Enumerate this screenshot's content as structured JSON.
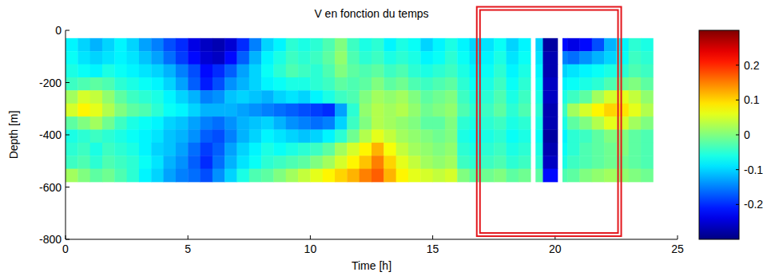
{
  "chart_data": {
    "type": "heatmap",
    "title": "V en fonction du temps",
    "x_label": "Time [h]",
    "y_label": "Depth [m]",
    "xlim": [
      0,
      25
    ],
    "ylim": [
      -800,
      0
    ],
    "xticks": [
      0,
      5,
      10,
      15,
      20,
      25
    ],
    "yticks": [
      -800,
      -600,
      -400,
      -200,
      0
    ],
    "x_edges": [
      0,
      0.5,
      1,
      1.5,
      2,
      2.5,
      3,
      3.5,
      4,
      4.5,
      5,
      5.5,
      6,
      6.5,
      7,
      7.5,
      8,
      8.5,
      9,
      9.5,
      10,
      10.5,
      11,
      11.5,
      12,
      12.5,
      13,
      13.5,
      14,
      14.5,
      15,
      15.5,
      16,
      16.5,
      17,
      17.5,
      18,
      18.5,
      19,
      19.2,
      19.5,
      20.1,
      20.3,
      20.5,
      21,
      21.5,
      22,
      22.5,
      23,
      23.5,
      24
    ],
    "y_edges": [
      -30,
      -80,
      -130,
      -180,
      -230,
      -280,
      -330,
      -380,
      -430,
      -480,
      -530,
      -580
    ],
    "cells": [
      [
        -0.08,
        -0.1,
        -0.12,
        -0.1,
        -0.08,
        -0.1,
        -0.13,
        -0.15,
        -0.18,
        -0.2,
        -0.24,
        -0.26,
        -0.27,
        -0.25,
        -0.2,
        -0.15,
        -0.1,
        -0.08,
        -0.05,
        -0.06,
        -0.05,
        -0.03,
        0.0,
        -0.04,
        -0.06,
        -0.05,
        -0.08,
        -0.06,
        -0.07,
        -0.1,
        -0.08,
        -0.06,
        -0.08,
        -0.1,
        -0.09,
        -0.07,
        -0.1,
        -0.08,
        null,
        -0.1,
        -0.28,
        null,
        -0.22,
        -0.24,
        -0.22,
        -0.18,
        -0.12,
        -0.08,
        -0.05,
        -0.06
      ],
      [
        -0.07,
        -0.09,
        -0.1,
        -0.09,
        -0.08,
        -0.09,
        -0.11,
        -0.13,
        -0.16,
        -0.19,
        -0.22,
        -0.25,
        -0.26,
        -0.22,
        -0.17,
        -0.12,
        -0.08,
        -0.06,
        -0.04,
        -0.05,
        -0.04,
        -0.02,
        0.01,
        -0.03,
        -0.05,
        -0.04,
        -0.06,
        -0.05,
        -0.06,
        -0.08,
        -0.07,
        -0.05,
        -0.07,
        -0.09,
        -0.08,
        -0.06,
        -0.09,
        -0.07,
        null,
        -0.09,
        -0.27,
        null,
        -0.15,
        -0.16,
        -0.14,
        -0.12,
        -0.1,
        -0.07,
        -0.04,
        -0.05
      ],
      [
        -0.06,
        -0.07,
        -0.08,
        -0.06,
        -0.07,
        -0.08,
        -0.09,
        -0.1,
        -0.12,
        -0.15,
        -0.18,
        -0.22,
        -0.2,
        -0.17,
        -0.13,
        -0.1,
        -0.07,
        -0.05,
        -0.03,
        -0.04,
        -0.05,
        -0.03,
        0.0,
        -0.02,
        -0.03,
        -0.02,
        -0.04,
        -0.03,
        -0.05,
        -0.06,
        -0.05,
        -0.04,
        -0.06,
        -0.08,
        -0.07,
        -0.05,
        -0.08,
        -0.06,
        null,
        -0.08,
        -0.27,
        null,
        -0.1,
        -0.09,
        -0.08,
        -0.07,
        -0.06,
        -0.05,
        -0.03,
        -0.04
      ],
      [
        -0.04,
        -0.03,
        -0.02,
        -0.03,
        -0.05,
        -0.06,
        -0.07,
        -0.08,
        -0.1,
        -0.13,
        -0.17,
        -0.21,
        -0.18,
        -0.14,
        -0.12,
        -0.1,
        -0.08,
        -0.07,
        -0.06,
        -0.06,
        -0.05,
        -0.04,
        -0.02,
        -0.03,
        -0.02,
        0.0,
        -0.02,
        -0.01,
        -0.03,
        -0.04,
        -0.03,
        -0.02,
        -0.05,
        -0.07,
        -0.06,
        -0.04,
        -0.07,
        -0.05,
        null,
        -0.07,
        -0.26,
        null,
        -0.08,
        -0.07,
        -0.06,
        -0.05,
        -0.03,
        -0.01,
        0.0,
        -0.02
      ],
      [
        0.02,
        0.05,
        0.04,
        0.01,
        -0.02,
        -0.04,
        -0.05,
        -0.06,
        -0.08,
        -0.1,
        -0.12,
        -0.15,
        -0.14,
        -0.11,
        -0.1,
        -0.11,
        -0.12,
        -0.1,
        -0.09,
        -0.1,
        -0.08,
        -0.06,
        -0.04,
        -0.03,
        0.0,
        0.02,
        0.01,
        0.02,
        0.0,
        -0.02,
        -0.01,
        0.0,
        -0.04,
        -0.06,
        -0.05,
        -0.03,
        -0.06,
        -0.04,
        null,
        -0.06,
        -0.26,
        null,
        -0.06,
        -0.04,
        -0.02,
        0.02,
        0.05,
        0.06,
        0.04,
        0.01
      ],
      [
        0.05,
        0.08,
        0.06,
        0.03,
        0.0,
        -0.02,
        -0.03,
        -0.05,
        -0.07,
        -0.08,
        -0.1,
        -0.12,
        -0.12,
        -0.12,
        -0.13,
        -0.14,
        -0.15,
        -0.16,
        -0.17,
        -0.18,
        -0.19,
        -0.2,
        -0.13,
        -0.05,
        0.01,
        0.03,
        0.02,
        0.03,
        0.01,
        -0.01,
        0.0,
        0.01,
        -0.03,
        -0.05,
        -0.04,
        -0.02,
        -0.05,
        -0.03,
        null,
        -0.05,
        -0.27,
        null,
        -0.04,
        0.02,
        0.05,
        0.08,
        0.1,
        0.09,
        0.06,
        0.03
      ],
      [
        -0.02,
        0.0,
        0.02,
        -0.01,
        -0.04,
        -0.06,
        -0.07,
        -0.08,
        -0.1,
        -0.11,
        -0.13,
        -0.15,
        -0.16,
        -0.14,
        -0.12,
        -0.11,
        -0.1,
        -0.12,
        -0.14,
        -0.15,
        -0.16,
        -0.15,
        -0.1,
        -0.04,
        0.0,
        0.03,
        0.02,
        0.01,
        0.0,
        -0.02,
        -0.02,
        0.0,
        -0.05,
        -0.06,
        -0.05,
        -0.04,
        -0.06,
        -0.05,
        null,
        -0.06,
        -0.27,
        null,
        -0.06,
        -0.02,
        0.0,
        0.03,
        0.06,
        0.05,
        0.02,
        0.0
      ],
      [
        -0.06,
        -0.05,
        -0.04,
        -0.05,
        -0.06,
        -0.07,
        -0.08,
        -0.09,
        -0.11,
        -0.12,
        -0.14,
        -0.17,
        -0.18,
        -0.15,
        -0.12,
        -0.1,
        -0.08,
        -0.09,
        -0.1,
        -0.11,
        -0.1,
        -0.08,
        -0.05,
        -0.01,
        0.03,
        0.06,
        0.04,
        0.02,
        0.01,
        0.0,
        -0.01,
        0.0,
        -0.06,
        -0.07,
        -0.06,
        -0.05,
        -0.07,
        -0.06,
        null,
        -0.07,
        -0.28,
        null,
        -0.08,
        -0.05,
        -0.04,
        -0.02,
        0.0,
        0.0,
        -0.02,
        -0.03
      ],
      [
        -0.05,
        -0.04,
        -0.06,
        -0.04,
        -0.05,
        -0.06,
        -0.08,
        -0.1,
        -0.11,
        -0.13,
        -0.16,
        -0.19,
        -0.17,
        -0.13,
        -0.1,
        -0.08,
        -0.06,
        -0.07,
        -0.06,
        -0.05,
        -0.04,
        -0.02,
        0.02,
        0.05,
        0.08,
        0.12,
        0.07,
        0.04,
        0.02,
        0.01,
        0.0,
        0.01,
        -0.05,
        -0.06,
        -0.05,
        -0.04,
        -0.06,
        -0.05,
        null,
        -0.06,
        -0.27,
        null,
        -0.07,
        -0.05,
        -0.03,
        -0.02,
        -0.01,
        0.0,
        -0.02,
        -0.03
      ],
      [
        -0.04,
        -0.03,
        -0.05,
        -0.03,
        -0.04,
        -0.05,
        -0.07,
        -0.09,
        -0.12,
        -0.14,
        -0.17,
        -0.2,
        -0.16,
        -0.12,
        -0.09,
        -0.07,
        -0.05,
        -0.04,
        -0.03,
        -0.02,
        0.0,
        0.02,
        0.05,
        0.08,
        0.11,
        0.15,
        0.1,
        0.06,
        0.04,
        0.02,
        0.01,
        0.02,
        -0.04,
        -0.05,
        -0.04,
        -0.03,
        -0.05,
        -0.04,
        null,
        -0.05,
        -0.26,
        null,
        -0.06,
        -0.04,
        -0.03,
        -0.02,
        -0.01,
        -0.01,
        -0.02,
        -0.03
      ],
      [
        0.02,
        0.0,
        -0.02,
        -0.01,
        -0.03,
        -0.05,
        -0.08,
        -0.1,
        -0.13,
        -0.15,
        -0.16,
        -0.18,
        -0.14,
        -0.1,
        -0.06,
        -0.03,
        -0.02,
        0.0,
        0.02,
        0.04,
        0.06,
        0.08,
        0.1,
        0.12,
        0.15,
        0.17,
        0.12,
        0.08,
        0.06,
        0.05,
        0.04,
        0.05,
        0.0,
        -0.02,
        -0.01,
        0.0,
        -0.02,
        -0.01,
        null,
        -0.02,
        -0.22,
        null,
        -0.03,
        -0.02,
        0.0,
        0.01,
        0.02,
        0.01,
        0.0,
        -0.01
      ]
    ],
    "colorbar": {
      "lim": [
        -0.3,
        0.3
      ],
      "ticks": [
        -0.2,
        -0.1,
        0,
        0.1,
        0.2
      ]
    },
    "highlight": {
      "x": [
        16.8,
        22.7
      ],
      "y": [
        -788,
        90
      ],
      "color": "#e3161c"
    }
  }
}
